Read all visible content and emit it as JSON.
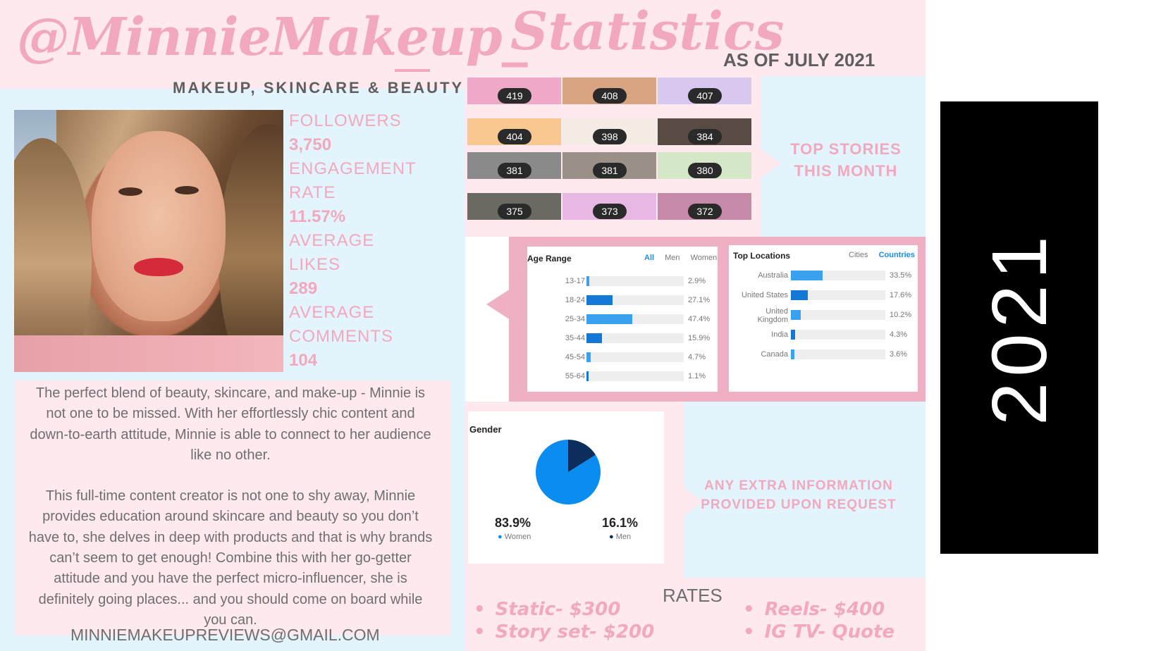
{
  "header": {
    "handle": "@MinnieMakeup_",
    "tagline": "MAKEUP, SKINCARE & BEAUTY",
    "stats_title": "Statistics",
    "as_of": "AS OF JULY 2021"
  },
  "profile_stats": [
    {
      "label": "FOLLOWERS",
      "value": "3,750"
    },
    {
      "label": "ENGAGEMENT",
      "label2": "RATE",
      "value": "11.57%"
    },
    {
      "label": "AVERAGE",
      "label2": "LIKES",
      "value": "289"
    },
    {
      "label": "AVERAGE",
      "label2": "COMMENTS",
      "value": "104"
    }
  ],
  "bio": {
    "p1": "The perfect blend of beauty, skincare, and make-up - Minnie is not one to be missed. With her effortlessly chic content and down-to-earth attitude, Minnie is able to connect to her audience like no other.",
    "p2": "This full-time content creator is not one to shy away, Minnie provides education around skincare and beauty so you don’t have to, she delves in deep with products and that is why brands can’t seem to get enough! Combine this with her go-getter attitude and you have the perfect micro-influencer, she is definitely going places... and you should come on board while you can."
  },
  "email": "MINNIEMAKEUPREVIEWS@GMAIL.COM",
  "top_stories": {
    "label_line1": "TOP STORIES",
    "label_line2": "THIS MONTH",
    "items": [
      {
        "views": "419",
        "color": "#f0a8c8"
      },
      {
        "views": "408",
        "color": "#d8a482"
      },
      {
        "views": "407",
        "color": "#d8c8f0"
      },
      {
        "views": "404",
        "color": "#f8c890"
      },
      {
        "views": "398",
        "color": "#f4ece4"
      },
      {
        "views": "384",
        "color": "#5a4a44"
      },
      {
        "views": "381",
        "color": "#8a8a8a"
      },
      {
        "views": "381",
        "color": "#9a9088"
      },
      {
        "views": "380",
        "color": "#d4e8c8"
      },
      {
        "views": "375",
        "color": "#6a6a62"
      },
      {
        "views": "373",
        "color": "#e8b8e4"
      },
      {
        "views": "372",
        "color": "#c48aa8"
      }
    ]
  },
  "age_range": {
    "title": "Age Range",
    "tabs": {
      "all": "All",
      "men": "Men",
      "women": "Women"
    },
    "rows": [
      {
        "label": "13-17",
        "value": 2.9,
        "pct": "2.9%"
      },
      {
        "label": "18-24",
        "value": 27.1,
        "pct": "27.1%"
      },
      {
        "label": "25-34",
        "value": 47.4,
        "pct": "47.4%"
      },
      {
        "label": "35-44",
        "value": 15.9,
        "pct": "15.9%"
      },
      {
        "label": "45-54",
        "value": 4.7,
        "pct": "4.7%"
      },
      {
        "label": "55-64",
        "value": 1.1,
        "pct": "1.1%"
      }
    ]
  },
  "top_locations": {
    "title": "Top Locations",
    "tabs": {
      "cities": "Cities",
      "countries": "Countries"
    },
    "rows": [
      {
        "label": "Australia",
        "value": 33.5,
        "pct": "33.5%"
      },
      {
        "label": "United States",
        "value": 17.6,
        "pct": "17.6%"
      },
      {
        "label": "United",
        "label2": "Kingdom",
        "value": 10.2,
        "pct": "10.2%"
      },
      {
        "label": "India",
        "value": 4.3,
        "pct": "4.3%"
      },
      {
        "label": "Canada",
        "value": 3.6,
        "pct": "3.6%"
      }
    ]
  },
  "gender": {
    "title": "Gender",
    "women_pct": "83.9%",
    "women_label": "Women",
    "women_value": 83.9,
    "men_pct": "16.1%",
    "men_label": "Men",
    "men_value": 16.1
  },
  "extra_info": {
    "line1": "ANY EXTRA INFORMATION",
    "line2": "PROVIDED UPON REQUEST"
  },
  "rates": {
    "title": "RATES",
    "static": "Static- $300",
    "story_set": "Story set- $200",
    "reels": "Reels- $400",
    "igtv": "IG TV- Quote"
  },
  "year": "2021",
  "colors": {
    "accent_pink": "#f3a9bd",
    "panel_pink": "#fde9ee",
    "panel_blue": "#e3f4fd",
    "bar_light": "#3aa0f0",
    "bar_dark": "#1479d6",
    "pie_women": "#0a8cf0",
    "pie_men": "#0b2e5c"
  }
}
